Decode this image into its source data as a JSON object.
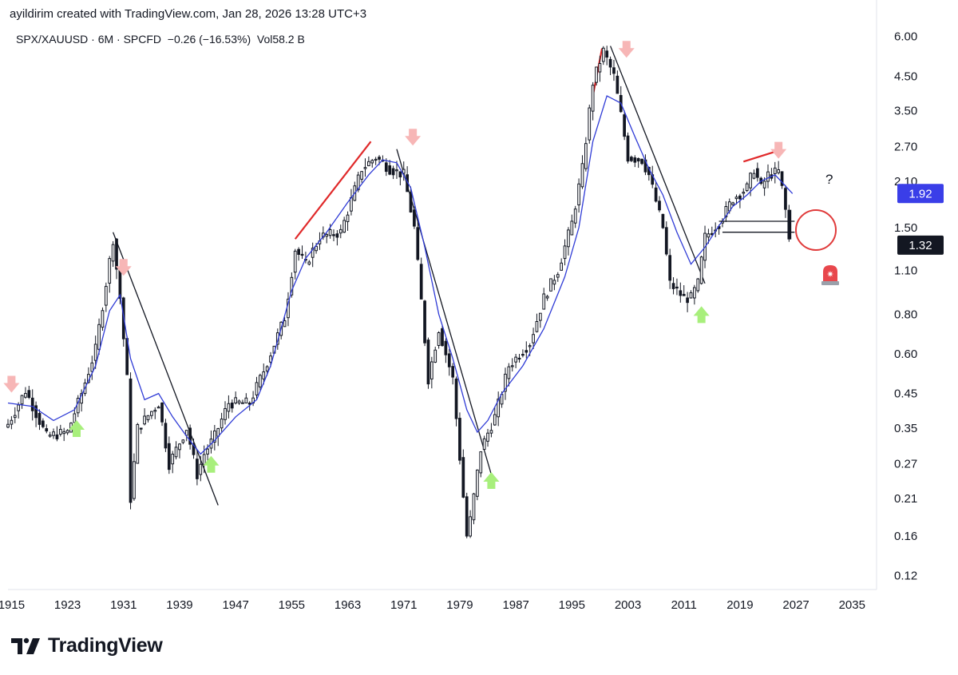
{
  "header": {
    "created_by": "ayildirim created with TradingView.com, Jan 28, 2026 13:28 UTC+3"
  },
  "legend": {
    "text": "SPX/XAUUSD · 6M · SPCFD  −0.26 (−16.53%)  Vol58.2 B"
  },
  "footer": {
    "brand": "TradingView"
  },
  "colors": {
    "candle": "#131722",
    "ma_line": "#2f3bd6",
    "trend_line": "#131722",
    "channel_line": "#e0292a",
    "down_arrow": "#f7b6b6",
    "up_arrow": "#a8ef7c",
    "price_tag_ma": "#3a3ee8",
    "price_tag_last": "#131722",
    "circle": "#e03a3a",
    "alarm": "#e8474c"
  },
  "annotations": {
    "question_mark": "?",
    "alarm_icon": "siren-icon",
    "price_tags": [
      {
        "label": "1.92",
        "value": 1.92,
        "style": "ma"
      },
      {
        "label": "1.32",
        "value": 1.32,
        "style": "last"
      }
    ],
    "down_arrow_years": [
      1915.0,
      1931.0,
      1972.3,
      2002.8,
      2024.5
    ],
    "up_arrow_years": [
      1924.3,
      1943.5,
      1983.5,
      2013.5
    ]
  },
  "chart_data": {
    "type": "candlestick",
    "title": "SPX/XAUUSD",
    "interval": "6M",
    "y_scale": "log",
    "ylim": [
      0.115,
      6.2
    ],
    "xlim": [
      1914.5,
      2038.5
    ],
    "y_ticks": [
      "6.00",
      "4.50",
      "3.50",
      "2.70",
      "2.10",
      "1.50",
      "1.10",
      "0.80",
      "0.60",
      "0.45",
      "0.35",
      "0.27",
      "0.21",
      "0.16",
      "0.12"
    ],
    "x_ticks": [
      "1915",
      "1923",
      "1931",
      "1939",
      "1947",
      "1955",
      "1963",
      "1971",
      "1979",
      "1987",
      "1995",
      "2003",
      "2011",
      "2019",
      "2027",
      "2035"
    ],
    "last_value": 1.32,
    "ma_last_value": 1.92,
    "change": "−0.26 (−16.53%)",
    "volume": "58.2 B",
    "series": [
      {
        "name": "price_anchors_year_value",
        "values": [
          [
            1914.5,
            0.36
          ],
          [
            1917,
            0.46
          ],
          [
            1920,
            0.33
          ],
          [
            1923,
            0.34
          ],
          [
            1925,
            0.45
          ],
          [
            1927,
            0.62
          ],
          [
            1929.5,
            1.38
          ],
          [
            1930.5,
            0.9
          ],
          [
            1931.5,
            0.5
          ],
          [
            1932,
            0.21
          ],
          [
            1933,
            0.35
          ],
          [
            1936,
            0.42
          ],
          [
            1937.5,
            0.27
          ],
          [
            1940,
            0.35
          ],
          [
            1941.5,
            0.25
          ],
          [
            1942.5,
            0.29
          ],
          [
            1944,
            0.33
          ],
          [
            1946,
            0.42
          ],
          [
            1949,
            0.42
          ],
          [
            1951,
            0.53
          ],
          [
            1954,
            0.78
          ],
          [
            1955.5,
            1.28
          ],
          [
            1957,
            1.15
          ],
          [
            1959,
            1.4
          ],
          [
            1962,
            1.45
          ],
          [
            1965,
            2.3
          ],
          [
            1967,
            2.5
          ],
          [
            1969,
            2.3
          ],
          [
            1971,
            2.2
          ],
          [
            1972.5,
            1.5
          ],
          [
            1973.5,
            0.88
          ],
          [
            1974.5,
            0.5
          ],
          [
            1976,
            0.72
          ],
          [
            1978,
            0.5
          ],
          [
            1980,
            0.16
          ],
          [
            1980.5,
            0.18
          ],
          [
            1982,
            0.3
          ],
          [
            1984,
            0.38
          ],
          [
            1986,
            0.55
          ],
          [
            1989,
            0.65
          ],
          [
            1991,
            0.9
          ],
          [
            1993,
            1.1
          ],
          [
            1995,
            1.55
          ],
          [
            1996.5,
            2.3
          ],
          [
            1998,
            4.3
          ],
          [
            1999.5,
            5.4
          ],
          [
            2001,
            4.5
          ],
          [
            2002,
            3.4
          ],
          [
            2003,
            2.5
          ],
          [
            2005,
            2.45
          ],
          [
            2006,
            2.2
          ],
          [
            2008,
            1.5
          ],
          [
            2009,
            1.0
          ],
          [
            2011,
            0.9
          ],
          [
            2012,
            0.9
          ],
          [
            2013,
            1.0
          ],
          [
            2014,
            1.4
          ],
          [
            2016,
            1.55
          ],
          [
            2018,
            1.85
          ],
          [
            2020,
            2.0
          ],
          [
            2021,
            2.3
          ],
          [
            2022,
            2.0
          ],
          [
            2023,
            2.2
          ],
          [
            2024.5,
            2.25
          ],
          [
            2025.2,
            1.9
          ],
          [
            2025.7,
            1.58
          ],
          [
            2026.1,
            1.32
          ]
        ]
      },
      {
        "name": "moving_average_year_value",
        "values": [
          [
            1914.5,
            0.42
          ],
          [
            1918,
            0.41
          ],
          [
            1921,
            0.37
          ],
          [
            1924,
            0.4
          ],
          [
            1927,
            0.55
          ],
          [
            1929,
            0.82
          ],
          [
            1930.5,
            0.92
          ],
          [
            1932,
            0.58
          ],
          [
            1934,
            0.43
          ],
          [
            1936,
            0.45
          ],
          [
            1938,
            0.38
          ],
          [
            1940,
            0.33
          ],
          [
            1942,
            0.29
          ],
          [
            1944,
            0.32
          ],
          [
            1947,
            0.38
          ],
          [
            1950,
            0.43
          ],
          [
            1952,
            0.55
          ],
          [
            1955,
            0.95
          ],
          [
            1957,
            1.2
          ],
          [
            1960,
            1.45
          ],
          [
            1963,
            1.8
          ],
          [
            1966,
            2.2
          ],
          [
            1968,
            2.45
          ],
          [
            1970,
            2.4
          ],
          [
            1972,
            2.0
          ],
          [
            1974,
            1.3
          ],
          [
            1976,
            0.8
          ],
          [
            1978,
            0.58
          ],
          [
            1980,
            0.4
          ],
          [
            1981.5,
            0.34
          ],
          [
            1983,
            0.37
          ],
          [
            1985,
            0.45
          ],
          [
            1988,
            0.55
          ],
          [
            1991,
            0.72
          ],
          [
            1994,
            1.05
          ],
          [
            1996,
            1.5
          ],
          [
            1998,
            2.8
          ],
          [
            2000,
            3.9
          ],
          [
            2002,
            3.7
          ],
          [
            2004,
            2.9
          ],
          [
            2006,
            2.3
          ],
          [
            2008,
            1.9
          ],
          [
            2010,
            1.45
          ],
          [
            2012,
            1.15
          ],
          [
            2014,
            1.3
          ],
          [
            2016,
            1.52
          ],
          [
            2018,
            1.75
          ],
          [
            2020,
            1.9
          ],
          [
            2022,
            2.1
          ],
          [
            2024,
            2.2
          ],
          [
            2026.5,
            1.92
          ]
        ]
      }
    ],
    "drawn_lines": [
      {
        "color": "black",
        "from": [
          1929.5,
          1.45
        ],
        "to": [
          1944.5,
          0.2
        ]
      },
      {
        "color": "black",
        "from": [
          1970,
          2.65
        ],
        "to": [
          1983.5,
          0.25
        ]
      },
      {
        "color": "black",
        "from": [
          2000.5,
          5.6
        ],
        "to": [
          2014,
          1.0
        ]
      },
      {
        "color": "red",
        "from": [
          1955.5,
          1.38
        ],
        "to": [
          1966.3,
          2.8
        ]
      },
      {
        "color": "red",
        "from": [
          1998,
          3.9
        ],
        "to": [
          1999.3,
          5.5
        ]
      },
      {
        "color": "red",
        "from": [
          2019.5,
          2.42
        ],
        "to": [
          2024,
          2.6
        ]
      },
      {
        "color": "black",
        "from": [
          2016,
          1.57
        ],
        "to": [
          2026.8,
          1.57
        ]
      },
      {
        "color": "black",
        "from": [
          2016.5,
          1.45
        ],
        "to": [
          2026.8,
          1.45
        ]
      }
    ]
  }
}
